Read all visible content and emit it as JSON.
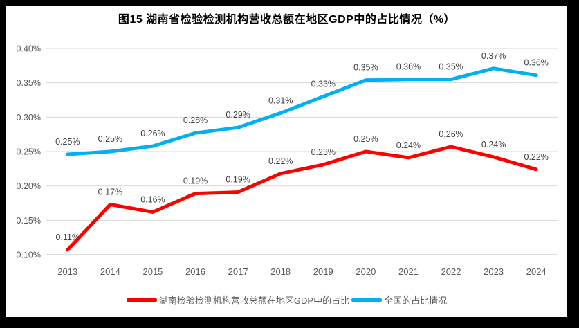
{
  "chart_data": {
    "type": "line",
    "title": "图15 湖南省检验检测机构营收总额在地区GDP中的占比情况（%）",
    "categories": [
      "2013",
      "2014",
      "2015",
      "2016",
      "2017",
      "2018",
      "2019",
      "2020",
      "2021",
      "2022",
      "2023",
      "2024"
    ],
    "series": [
      {
        "name": "湖南检验检测机构营收总额在地区GDP中的占比",
        "color": "#FF0000",
        "labels": [
          "0.11%",
          "0.17%",
          "0.16%",
          "0.19%",
          "0.19%",
          "0.22%",
          "0.23%",
          "0.25%",
          "0.24%",
          "0.26%",
          "0.24%",
          "0.22%"
        ],
        "values": [
          0.107,
          0.173,
          0.162,
          0.189,
          0.191,
          0.218,
          0.231,
          0.25,
          0.241,
          0.257,
          0.242,
          0.224
        ]
      },
      {
        "name": "全国的占比情况",
        "color": "#00B0F0",
        "labels": [
          "0.25%",
          "0.25%",
          "0.26%",
          "0.28%",
          "0.29%",
          "0.31%",
          "0.33%",
          "0.35%",
          "0.36%",
          "0.35%",
          "0.37%",
          "0.36%"
        ],
        "values": [
          0.246,
          0.25,
          0.258,
          0.277,
          0.285,
          0.306,
          0.33,
          0.354,
          0.355,
          0.355,
          0.371,
          0.361
        ]
      }
    ],
    "y_axis": {
      "min": 0.1,
      "max": 0.4,
      "ticks": [
        "0.40%",
        "0.35%",
        "0.30%",
        "0.25%",
        "0.20%",
        "0.15%",
        "0.10%"
      ]
    },
    "grid": true,
    "legend_position": "bottom"
  },
  "colors": {
    "frame_border": "#000000",
    "plot_background": "#ffffff",
    "gridline": "#D9D9D9",
    "bottom_axis_line": "#BFBFBF",
    "axis_text": "#595959",
    "data_label_text": "#404040",
    "title_text": "#000000"
  }
}
